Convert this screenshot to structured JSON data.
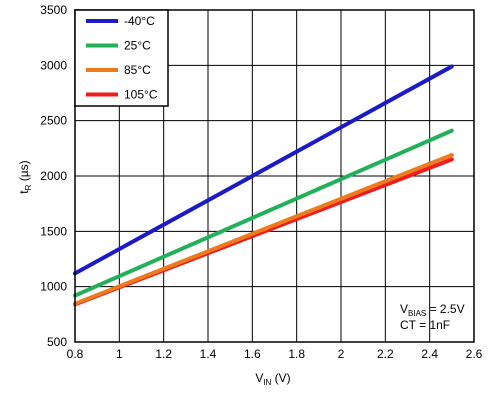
{
  "chart_data": {
    "type": "line",
    "xlabel": {
      "main": "V",
      "sub": "IN",
      "unit": " (V)"
    },
    "ylabel": {
      "main": "t",
      "sub": "R",
      "unit": " (µs)"
    },
    "xlim": [
      0.8,
      2.6
    ],
    "ylim": [
      500,
      3500
    ],
    "xticks": [
      "0.8",
      "1",
      "1.2",
      "1.4",
      "1.6",
      "1.8",
      "2",
      "2.2",
      "2.4",
      "2.6"
    ],
    "yticks": [
      "500",
      "1000",
      "1500",
      "2000",
      "2500",
      "3000",
      "3500"
    ],
    "grid": true,
    "legend_position": "top-left",
    "series": [
      {
        "name": "-40°C",
        "color": "#1a1ac8",
        "x": [
          0.8,
          2.5
        ],
        "y": [
          1120,
          2990
        ]
      },
      {
        "name": "25°C",
        "color": "#22b05a",
        "x": [
          0.8,
          2.5
        ],
        "y": [
          920,
          2410
        ]
      },
      {
        "name": "85°C",
        "color": "#ee7a1e",
        "x": [
          0.8,
          2.5
        ],
        "y": [
          845,
          2190
        ]
      },
      {
        "name": "105°C",
        "color": "#ee1c1c",
        "x": [
          0.8,
          2.5
        ],
        "y": [
          840,
          2150
        ]
      }
    ],
    "annotation": {
      "line1_main": "V",
      "line1_sub": "BIAS",
      "line1_rest": " = 2.5V",
      "line2": "CT = 1nF"
    }
  }
}
